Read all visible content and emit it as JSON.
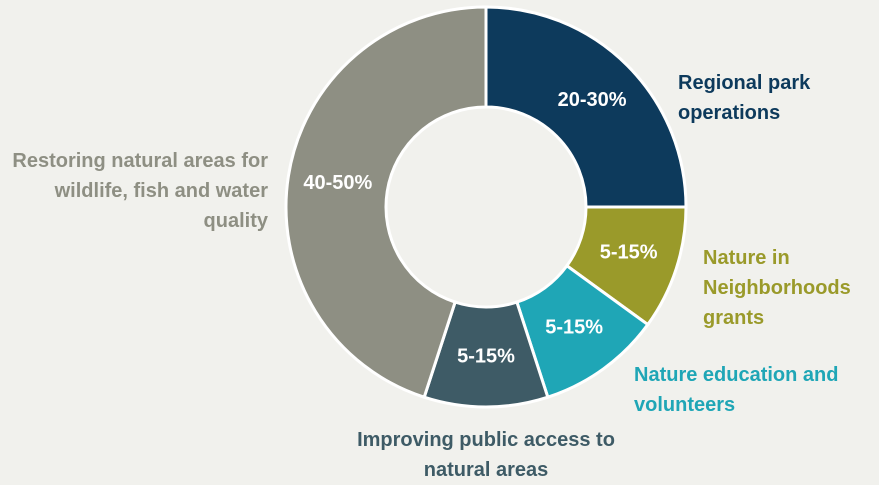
{
  "chart_data": {
    "type": "donut",
    "categories": [
      "Regional park operations",
      "Nature in Neighborhoods grants",
      "Nature education and volunteers",
      "Improving public access to natural areas",
      "Restoring natural areas for wildlife, fish and water quality"
    ],
    "values": [
      25,
      10,
      10,
      10,
      45
    ],
    "value_labels": [
      "20-30%",
      "5-15%",
      "5-15%",
      "5-15%",
      "40-50%"
    ],
    "colors": [
      "#0d3a5c",
      "#9a9a2a",
      "#1fa6b6",
      "#3e5b66",
      "#8e8f83"
    ]
  }
}
